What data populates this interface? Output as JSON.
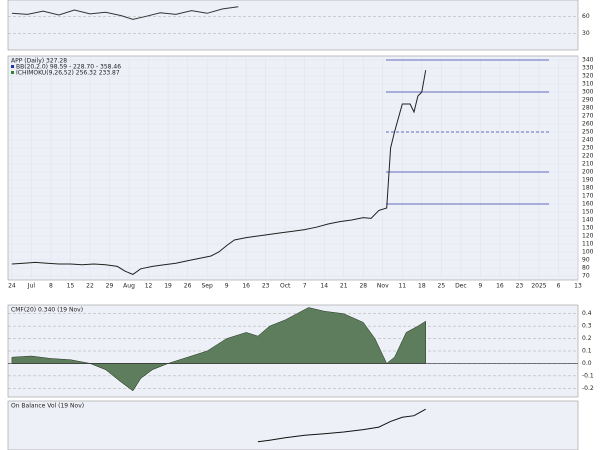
{
  "chart_data": [
    {
      "type": "line",
      "color": "#333333",
      "xlim": [
        -1,
        145
      ],
      "ylim": [
        0,
        90
      ],
      "yticks": [
        60,
        30
      ],
      "x": [
        0,
        4,
        8,
        12,
        16,
        20,
        24,
        28,
        31,
        34,
        38,
        42,
        46,
        50,
        54,
        58
      ],
      "values": [
        66,
        64,
        70,
        63,
        72,
        65,
        68,
        62,
        55,
        60,
        67,
        64,
        71,
        66,
        74,
        78
      ]
    },
    {
      "type": "line",
      "color": "#222222",
      "title": "APP (Daily) 327.28",
      "indicators": [
        "BB(20,2.0) 98.59 - 228.70 - 358.46",
        "ICHIMOKU(9,26,52) 256.32 233.87"
      ],
      "xlim": [
        -1,
        145
      ],
      "ylim": [
        65,
        345
      ],
      "yticks": [
        340,
        330,
        320,
        310,
        300,
        290,
        280,
        270,
        260,
        250,
        240,
        230,
        220,
        210,
        200,
        190,
        180,
        170,
        160,
        150,
        140,
        130,
        120,
        110,
        100,
        90,
        80,
        70
      ],
      "xticks": [
        {
          "value": 0,
          "label": "24"
        },
        {
          "value": 5,
          "label": "Jul"
        },
        {
          "value": 10,
          "label": "8"
        },
        {
          "value": 15,
          "label": "15"
        },
        {
          "value": 20,
          "label": "22"
        },
        {
          "value": 25,
          "label": "29"
        },
        {
          "value": 30,
          "label": "Aug"
        },
        {
          "value": 35,
          "label": "12"
        },
        {
          "value": 40,
          "label": "19"
        },
        {
          "value": 45,
          "label": "26"
        },
        {
          "value": 50,
          "label": "Sep"
        },
        {
          "value": 55,
          "label": "9"
        },
        {
          "value": 60,
          "label": "16"
        },
        {
          "value": 65,
          "label": "23"
        },
        {
          "value": 70,
          "label": "Oct"
        },
        {
          "value": 75,
          "label": "7"
        },
        {
          "value": 80,
          "label": "14"
        },
        {
          "value": 85,
          "label": "21"
        },
        {
          "value": 90,
          "label": "28"
        },
        {
          "value": 95,
          "label": "Nov"
        },
        {
          "value": 100,
          "label": "11"
        },
        {
          "value": 105,
          "label": "18"
        },
        {
          "value": 110,
          "label": "25"
        },
        {
          "value": 115,
          "label": "Dec"
        },
        {
          "value": 120,
          "label": "9"
        },
        {
          "value": 125,
          "label": "16"
        },
        {
          "value": 130,
          "label": "23"
        },
        {
          "value": 135,
          "label": "2025"
        },
        {
          "value": 140,
          "label": "6"
        },
        {
          "value": 145,
          "label": "13"
        }
      ],
      "levels": [
        340,
        300,
        250,
        200,
        160
      ],
      "level_color": "#3344aa",
      "x": [
        0,
        3,
        6,
        9,
        12,
        15,
        18,
        21,
        24,
        27,
        29,
        31,
        33,
        36,
        39,
        42,
        45,
        48,
        51,
        53,
        55,
        57,
        60,
        63,
        66,
        69,
        72,
        75,
        78,
        81,
        84,
        87,
        90,
        92,
        94,
        96,
        97,
        98,
        100,
        102,
        103,
        104,
        105,
        106
      ],
      "values": [
        85,
        86,
        87,
        86,
        85,
        85,
        84,
        85,
        84,
        82,
        76,
        72,
        79,
        82,
        84,
        86,
        89,
        92,
        95,
        100,
        108,
        115,
        118,
        120,
        122,
        124,
        126,
        128,
        131,
        135,
        138,
        140,
        143,
        142,
        152,
        155,
        230,
        250,
        285,
        285,
        275,
        295,
        300,
        327.28
      ]
    },
    {
      "type": "area",
      "title": "CMF(20) 0.340 (19 Nov)",
      "color": "#5e7d5c",
      "negative_color": "#8c4e4c",
      "xlim": [
        -1,
        145
      ],
      "ylim": [
        -0.27,
        0.47
      ],
      "yticks": [
        0.4,
        0.3,
        0.2,
        0.1,
        {
          "value": 0,
          "label": "0.0"
        },
        -0.1,
        -0.2
      ],
      "x": [
        0,
        5,
        10,
        15,
        20,
        24,
        28,
        31,
        33,
        36,
        40,
        45,
        50,
        55,
        60,
        63,
        66,
        70,
        73,
        76,
        80,
        85,
        90,
        93,
        96,
        98,
        101,
        104,
        106
      ],
      "values": [
        0.05,
        0.06,
        0.04,
        0.03,
        0.0,
        -0.05,
        -0.15,
        -0.22,
        -0.12,
        -0.05,
        0.0,
        0.05,
        0.1,
        0.2,
        0.25,
        0.22,
        0.3,
        0.35,
        0.4,
        0.45,
        0.42,
        0.4,
        0.33,
        0.2,
        0.0,
        0.05,
        0.25,
        0.3,
        0.34
      ]
    },
    {
      "type": "line",
      "title": "On Balance Vol (19 Nov)",
      "color": "#111111",
      "xlim": [
        -1,
        145
      ],
      "ylim": [
        0,
        60
      ],
      "x": [
        63,
        66,
        70,
        75,
        80,
        85,
        90,
        94,
        97,
        100,
        103,
        106
      ],
      "values": [
        10,
        12,
        15,
        18,
        20,
        22,
        25,
        28,
        35,
        40,
        42,
        50
      ]
    }
  ]
}
